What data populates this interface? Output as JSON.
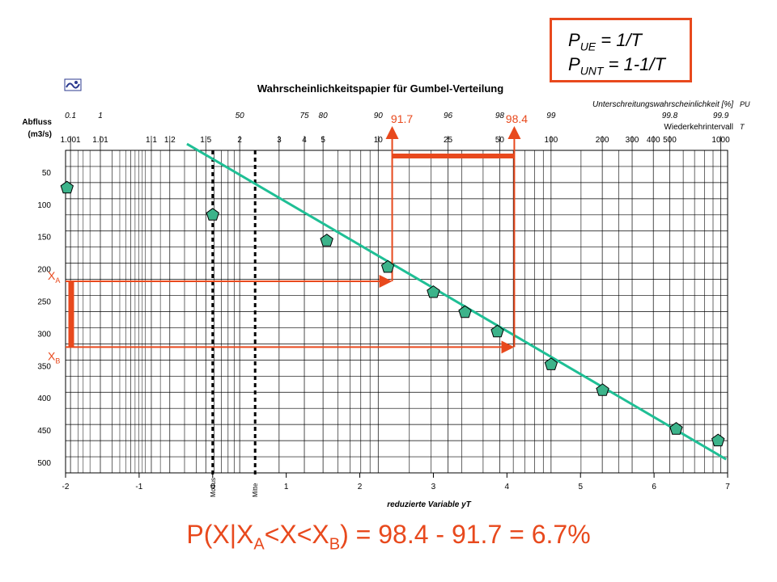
{
  "legend": {
    "line1": {
      "p": "P",
      "sub": "UE",
      "rest": " = 1/T"
    },
    "line2": {
      "p": "P",
      "sub": "UNT",
      "rest": " = 1-1/T"
    }
  },
  "formula": {
    "part1": "P(X|X",
    "sub1": "A",
    "part2": "<X<X",
    "sub2": "B",
    "part3": ") = 98.4 - 91.7 = 6.7%"
  },
  "colors": {
    "accent": "#e8491d",
    "fit_line": "#1fbf95",
    "marker": "#3cb38a",
    "grid": "#000000"
  },
  "chart_data": {
    "type": "scatter",
    "title": "Wahrscheinlichkeitspapier für Gumbel-Verteilung",
    "xlabel": "reduzierte Variable yT",
    "ylabel": "Abfluss (m3/s)",
    "xlim": [
      -2,
      7
    ],
    "ylim": [
      500,
      0
    ],
    "x_ticks": [
      "-2",
      "-1",
      "0",
      "1",
      "2",
      "3",
      "4",
      "5",
      "6",
      "7"
    ],
    "y_ticks": [
      50,
      100,
      150,
      200,
      250,
      300,
      350,
      400,
      450,
      500
    ],
    "y_tick_labels": [
      "50",
      "100",
      "150",
      "200",
      "250",
      "300",
      "350",
      "400",
      "450",
      "500"
    ],
    "vertical_markers": [
      {
        "label": "Modus",
        "x": 0
      },
      {
        "label": "Mitte",
        "x": 0.577
      }
    ],
    "top_scale_P": {
      "label": "Unterschreitungswahrscheinlichkeit [%]",
      "side_label": "PU",
      "ticks": [
        {
          "label": "0.1",
          "x": -1.933
        },
        {
          "label": "1",
          "x": -1.527
        },
        {
          "label": "50",
          "x": 0.367
        },
        {
          "label": "75",
          "x": 1.246
        },
        {
          "label": "80",
          "x": 1.5
        },
        {
          "label": "90",
          "x": 2.25
        },
        {
          "label": "96",
          "x": 3.199
        },
        {
          "label": "98",
          "x": 3.902
        },
        {
          "label": "99",
          "x": 4.6
        },
        {
          "label": "99.8",
          "x": 6.213
        },
        {
          "label": "99.9",
          "x": 6.907
        }
      ]
    },
    "top_scale_T": {
      "label": "Wiederkehrintervall",
      "side_label": "T",
      "ticks": [
        {
          "label": "1.001",
          "x": -1.933
        },
        {
          "label": "1.01",
          "x": -1.527
        },
        {
          "label": "1.1",
          "x": -0.834
        },
        {
          "label": "1.2",
          "x": -0.583
        },
        {
          "label": "1.5",
          "x": -0.094
        },
        {
          "label": "2",
          "x": 0.367
        },
        {
          "label": "3",
          "x": 0.903
        },
        {
          "label": "4",
          "x": 1.246
        },
        {
          "label": "5",
          "x": 1.5
        },
        {
          "label": "10",
          "x": 2.25
        },
        {
          "label": "25",
          "x": 3.199
        },
        {
          "label": "50",
          "x": 3.902
        },
        {
          "label": "100",
          "x": 4.6
        },
        {
          "label": "200",
          "x": 5.296
        },
        {
          "label": "300",
          "x": 5.702
        },
        {
          "label": "400",
          "x": 5.99
        },
        {
          "label": "500",
          "x": 6.213
        },
        {
          "label": "1000",
          "x": 6.907
        }
      ]
    },
    "extra_grid_T": [
      1.02,
      1.05,
      1.3,
      1.4,
      1.6,
      1.7,
      1.8,
      1.9,
      6,
      7,
      8,
      9,
      15,
      20,
      30,
      40,
      60,
      70,
      80,
      90,
      150,
      250,
      600,
      700,
      800,
      900
    ],
    "points": [
      {
        "x": -1.98,
        "y": 58
      },
      {
        "x": 0.0,
        "y": 100
      },
      {
        "x": 1.55,
        "y": 140
      },
      {
        "x": 2.38,
        "y": 181
      },
      {
        "x": 3.0,
        "y": 220
      },
      {
        "x": 3.43,
        "y": 251
      },
      {
        "x": 3.87,
        "y": 281
      },
      {
        "x": 4.6,
        "y": 332
      },
      {
        "x": 5.3,
        "y": 372
      },
      {
        "x": 6.3,
        "y": 432
      },
      {
        "x": 6.87,
        "y": 450
      }
    ],
    "fit_line": [
      {
        "x": -0.35,
        "y": -10
      },
      {
        "x": 6.98,
        "y": 479
      }
    ],
    "annotations": {
      "XA": {
        "label": "X",
        "sub": "A",
        "y": 203,
        "x_end": 2.44
      },
      "XB": {
        "label": "X",
        "sub": "B",
        "y": 305,
        "x_end": 4.1
      },
      "PA": {
        "label": "91.7",
        "x": 2.44
      },
      "PB": {
        "label": "98.4",
        "x": 4.1
      }
    }
  }
}
